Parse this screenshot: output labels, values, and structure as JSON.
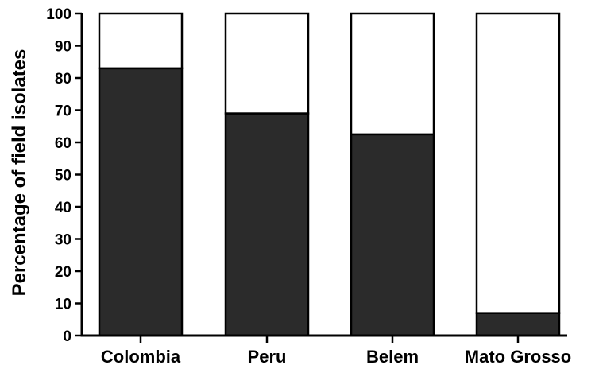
{
  "chart_data": {
    "type": "bar",
    "stacked": true,
    "title": "",
    "xlabel": "",
    "ylabel": "Percentage of field isolates",
    "ylim": [
      0,
      100
    ],
    "yticks": [
      0,
      10,
      20,
      30,
      40,
      50,
      60,
      70,
      80,
      90,
      100
    ],
    "categories": [
      "Colombia",
      "Peru",
      "Belem",
      "Mato Grosso"
    ],
    "series": [
      {
        "values": [
          83,
          69,
          62.5,
          7
        ],
        "color": "#2b2b2b"
      },
      {
        "values": [
          17,
          31,
          37.5,
          93
        ],
        "color": "#ffffff"
      }
    ],
    "grid": false,
    "legend": "none"
  }
}
